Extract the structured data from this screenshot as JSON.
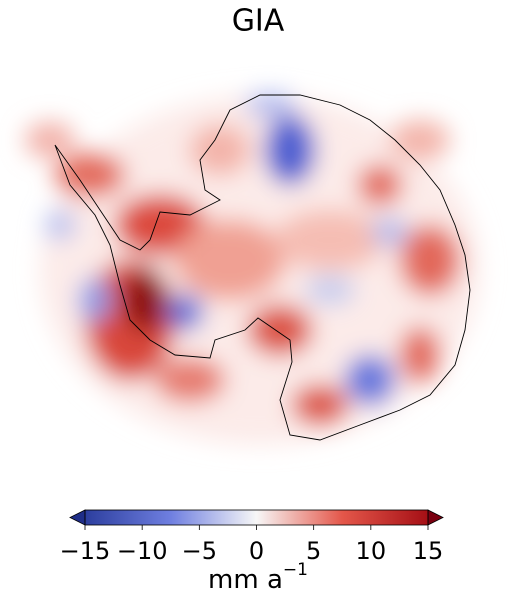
{
  "title": "GIA",
  "colorbar": {
    "lim": [
      -15,
      15
    ],
    "ticks": [
      {
        "value": -15,
        "label": "−15"
      },
      {
        "value": -10,
        "label": "−10"
      },
      {
        "value": -5,
        "label": "−5"
      },
      0,
      5,
      10,
      15
    ],
    "label": "mm a",
    "label_superscript": "−1"
  }
}
